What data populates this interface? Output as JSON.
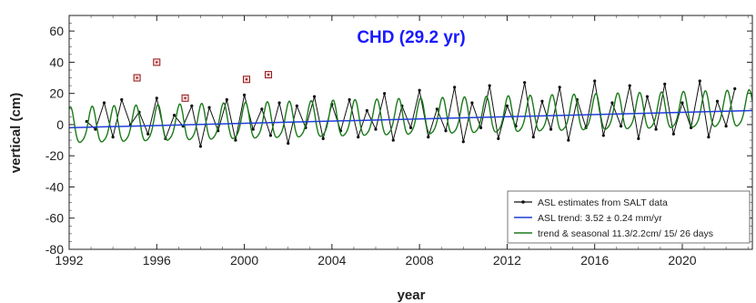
{
  "chart_data": {
    "type": "line",
    "title": "CHD (29.2 yr)",
    "xlabel": "year",
    "ylabel": "vertical (cm)",
    "xlim": [
      1992,
      2023.2
    ],
    "ylim": [
      -80,
      70
    ],
    "xticks": [
      1992,
      1996,
      2000,
      2004,
      2008,
      2012,
      2016,
      2020
    ],
    "yticks": [
      -80,
      -60,
      -40,
      -20,
      0,
      20,
      40,
      60
    ],
    "grid": false,
    "legend_position": "bottom-right",
    "colors": {
      "title": "#1a1aff",
      "estimates": "#111111",
      "trend": "#1f3fd6",
      "seasonal": "#1a7a1a",
      "outliers": "#8b1a1a",
      "outlier_fill": "#ffd6d6"
    },
    "series": [
      {
        "name": "ASL estimates from SALT data",
        "kind": "points",
        "x": [
          1992.8,
          1993.2,
          1993.6,
          1994.0,
          1994.4,
          1994.8,
          1995.2,
          1995.6,
          1996.0,
          1996.4,
          1996.8,
          1997.2,
          1997.6,
          1998.0,
          1998.4,
          1998.8,
          1999.2,
          1999.6,
          2000.0,
          2000.4,
          2000.8,
          2001.2,
          2001.6,
          2002.0,
          2002.4,
          2002.8,
          2003.2,
          2003.6,
          2004.0,
          2004.4,
          2004.8,
          2005.2,
          2005.6,
          2006.0,
          2006.4,
          2006.8,
          2007.2,
          2007.6,
          2008.0,
          2008.4,
          2008.8,
          2009.2,
          2009.6,
          2010.0,
          2010.4,
          2010.8,
          2011.2,
          2011.6,
          2012.0,
          2012.4,
          2012.8,
          2013.2,
          2013.6,
          2014.0,
          2014.4,
          2014.8,
          2015.2,
          2015.6,
          2016.0,
          2016.4,
          2016.8,
          2017.2,
          2017.6,
          2018.0,
          2018.4,
          2018.8,
          2019.2,
          2019.6,
          2020.0,
          2020.4,
          2020.8,
          2021.2,
          2021.6,
          2022.0,
          2022.4
        ],
        "y": [
          2,
          -3,
          14,
          -8,
          16,
          0,
          8,
          -6,
          17,
          -9,
          6,
          -1,
          12,
          -14,
          11,
          -4,
          16,
          -10,
          19,
          -3,
          10,
          -7,
          14,
          -12,
          12,
          -2,
          18,
          -9,
          13,
          -4,
          16,
          -8,
          9,
          -3,
          20,
          -10,
          12,
          -2,
          22,
          -8,
          10,
          -4,
          24,
          -11,
          14,
          -2,
          25,
          -9,
          12,
          -1,
          27,
          -8,
          15,
          -3,
          24,
          -10,
          16,
          -2,
          28,
          -7,
          14,
          -1,
          25,
          -9,
          18,
          -3,
          26,
          -6,
          14,
          -2,
          28,
          -8,
          15,
          -1,
          23
        ]
      },
      {
        "name": "ASL trend: 3.52 ± 0.24 mm/yr",
        "kind": "trend",
        "slope_cm_per_yr": 0.352,
        "reference_year": 2007.6,
        "value_at_reference_cm": 3.5
      },
      {
        "name": "trend & seasonal 11.3/2.2cm/ 15/ 26 days",
        "kind": "seasonal_fit",
        "annual_amplitude_cm": 11.3,
        "semiannual_amplitude_cm": 2.2,
        "annual_phase_days": 15,
        "semiannual_phase_days": 26
      }
    ],
    "outliers": {
      "x": [
        1995.1,
        1996.0,
        1997.3,
        2000.1,
        2001.1
      ],
      "y": [
        30,
        40,
        17,
        29,
        32
      ]
    }
  }
}
